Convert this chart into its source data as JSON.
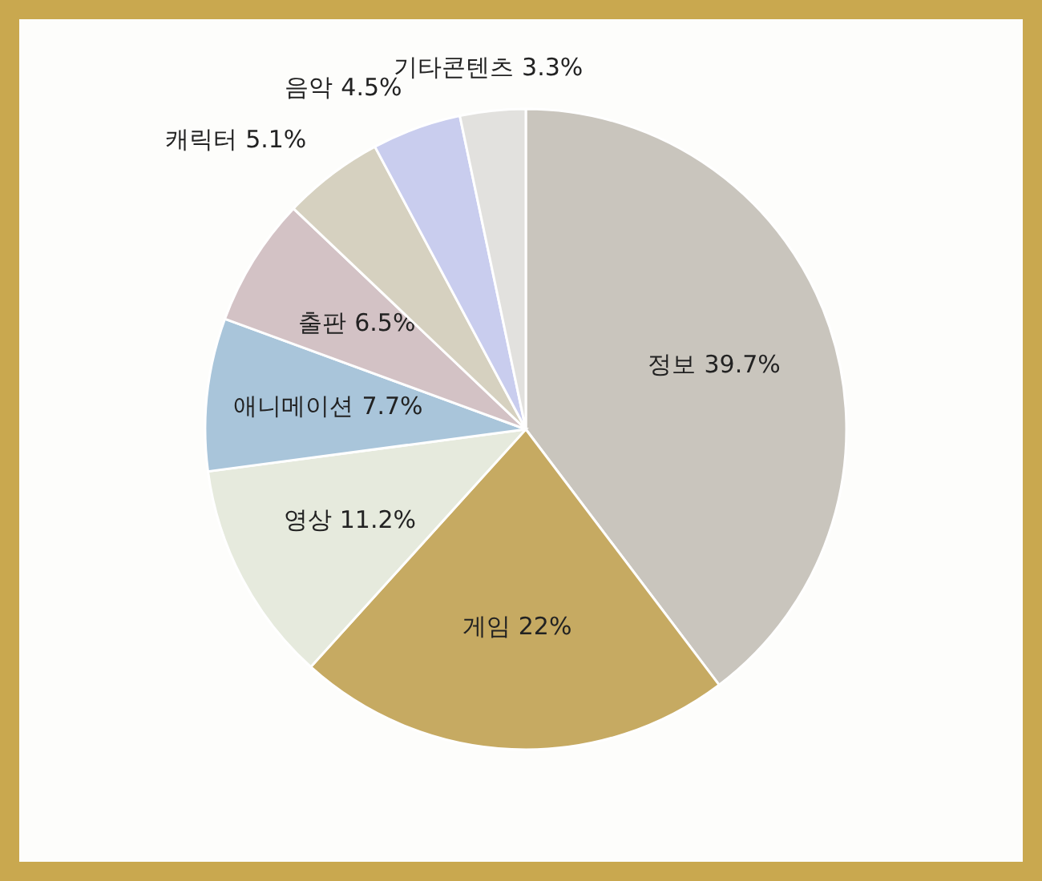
{
  "chart_data": {
    "type": "pie",
    "categories": [
      "정보",
      "게임",
      "영상",
      "애니메이션",
      "출판",
      "캐릭터",
      "음악",
      "기타콘텐츠"
    ],
    "values": [
      39.7,
      22,
      11.2,
      7.7,
      6.5,
      5.1,
      4.5,
      3.3
    ],
    "colors": [
      "#c9c5bd",
      "#c6aa62",
      "#e6eadd",
      "#a9c5da",
      "#d3c2c5",
      "#d6d1c0",
      "#c9cdee",
      "#e2e1de"
    ],
    "value_labels": [
      "39.7%",
      "22%",
      "11.2%",
      "7.7%",
      "6.5%",
      "5.1%",
      "4.5%",
      "3.3%"
    ]
  }
}
